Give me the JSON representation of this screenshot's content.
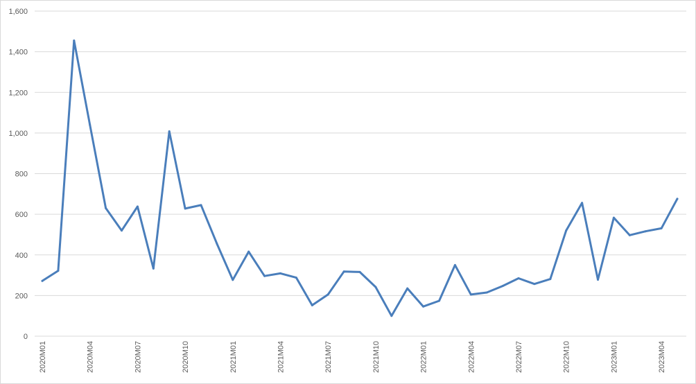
{
  "chart_data": {
    "type": "line",
    "title": "",
    "xlabel": "",
    "ylabel": "",
    "ylim": [
      0,
      1600
    ],
    "yticks": [
      "0",
      "200",
      "400",
      "600",
      "800",
      "1,000",
      "1,200",
      "1,400",
      "1,600"
    ],
    "grid": true,
    "legend": "none",
    "line_color": "#4a7ebb",
    "grid_color": "#d9d9d9",
    "x": [
      "2020M01",
      "2020M02",
      "2020M03",
      "2020M04",
      "2020M05",
      "2020M06",
      "2020M07",
      "2020M08",
      "2020M09",
      "2020M10",
      "2020M11",
      "2020M12",
      "2021M01",
      "2021M02",
      "2021M03",
      "2021M04",
      "2021M05",
      "2021M06",
      "2021M07",
      "2021M08",
      "2021M09",
      "2021M10",
      "2021M11",
      "2021M12",
      "2022M01",
      "2022M02",
      "2022M03",
      "2022M04",
      "2022M05",
      "2022M06",
      "2022M07",
      "2022M08",
      "2022M09",
      "2022M10",
      "2022M11",
      "2022M12",
      "2023M01",
      "2023M02",
      "2023M03",
      "2023M04",
      "2023M05"
    ],
    "xtick_labels": [
      "2020M01",
      "2020M04",
      "2020M07",
      "2020M10",
      "2021M01",
      "2021M04",
      "2021M07",
      "2021M10",
      "2022M01",
      "2022M04",
      "2022M07",
      "2022M10",
      "2023M01",
      "2023M04"
    ],
    "series": [
      {
        "values": [
          272,
          322,
          1455,
          1040,
          630,
          520,
          638,
          333,
          1008,
          628,
          645,
          455,
          277,
          416,
          296,
          309,
          288,
          152,
          205,
          318,
          316,
          242,
          100,
          235,
          146,
          174,
          350,
          205,
          215,
          247,
          285,
          257,
          281,
          520,
          656,
          278,
          583,
          497,
          516,
          531,
          676
        ]
      }
    ]
  }
}
